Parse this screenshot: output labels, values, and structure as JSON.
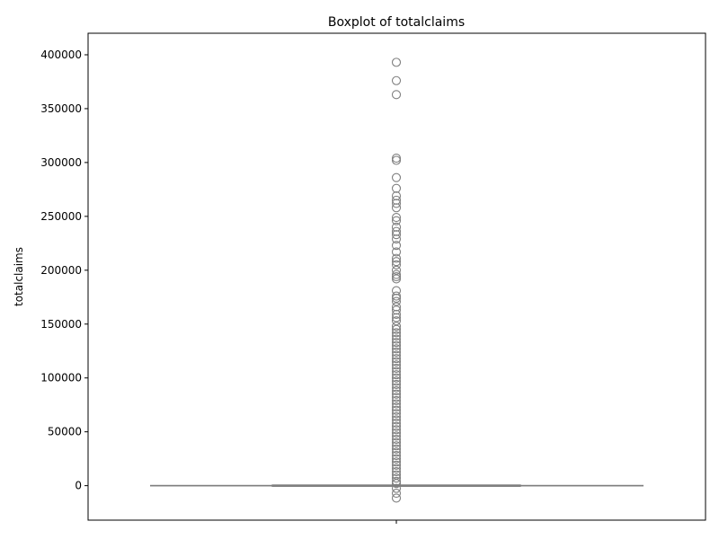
{
  "chart_data": {
    "type": "boxplot",
    "title": "Boxplot of totalclaims",
    "xlabel": "",
    "ylabel": "totalclaims",
    "ylim": [
      -32000,
      420000
    ],
    "yticks": [
      0,
      50000,
      100000,
      150000,
      200000,
      250000,
      300000,
      350000,
      400000
    ],
    "ytick_labels": [
      "0",
      "50000",
      "100000",
      "150000",
      "200000",
      "250000",
      "300000",
      "350000",
      "400000"
    ],
    "grid": false,
    "legend": "none",
    "box": {
      "q1": 0,
      "median": 0,
      "q3": 0,
      "whisker_low": 0,
      "whisker_high": 0,
      "color": "#7f7f7f"
    },
    "outliers": [
      393000,
      376000,
      363000,
      304000,
      302000,
      286000,
      276000,
      269000,
      265000,
      262000,
      258000,
      249000,
      246000,
      240000,
      236000,
      233000,
      229000,
      223000,
      217000,
      211000,
      208000,
      205000,
      200000,
      196000,
      194000,
      192000,
      181000,
      176000,
      174000,
      171000,
      166000,
      163000,
      159000,
      156000,
      153000,
      148000,
      145000,
      142000,
      139000,
      136000,
      133000,
      130000,
      127000,
      124000,
      121000,
      118000,
      115000,
      112000,
      109000,
      106000,
      103000,
      100000,
      97000,
      94000,
      91000,
      88000,
      85000,
      82000,
      79000,
      76000,
      73000,
      70000,
      67000,
      64000,
      61000,
      58000,
      55000,
      52000,
      49000,
      46000,
      43000,
      40000,
      37000,
      34000,
      31000,
      28000,
      25000,
      22000,
      19000,
      16000,
      13000,
      10000,
      7000,
      4000,
      2000,
      -2500,
      -7000,
      -11500
    ]
  }
}
